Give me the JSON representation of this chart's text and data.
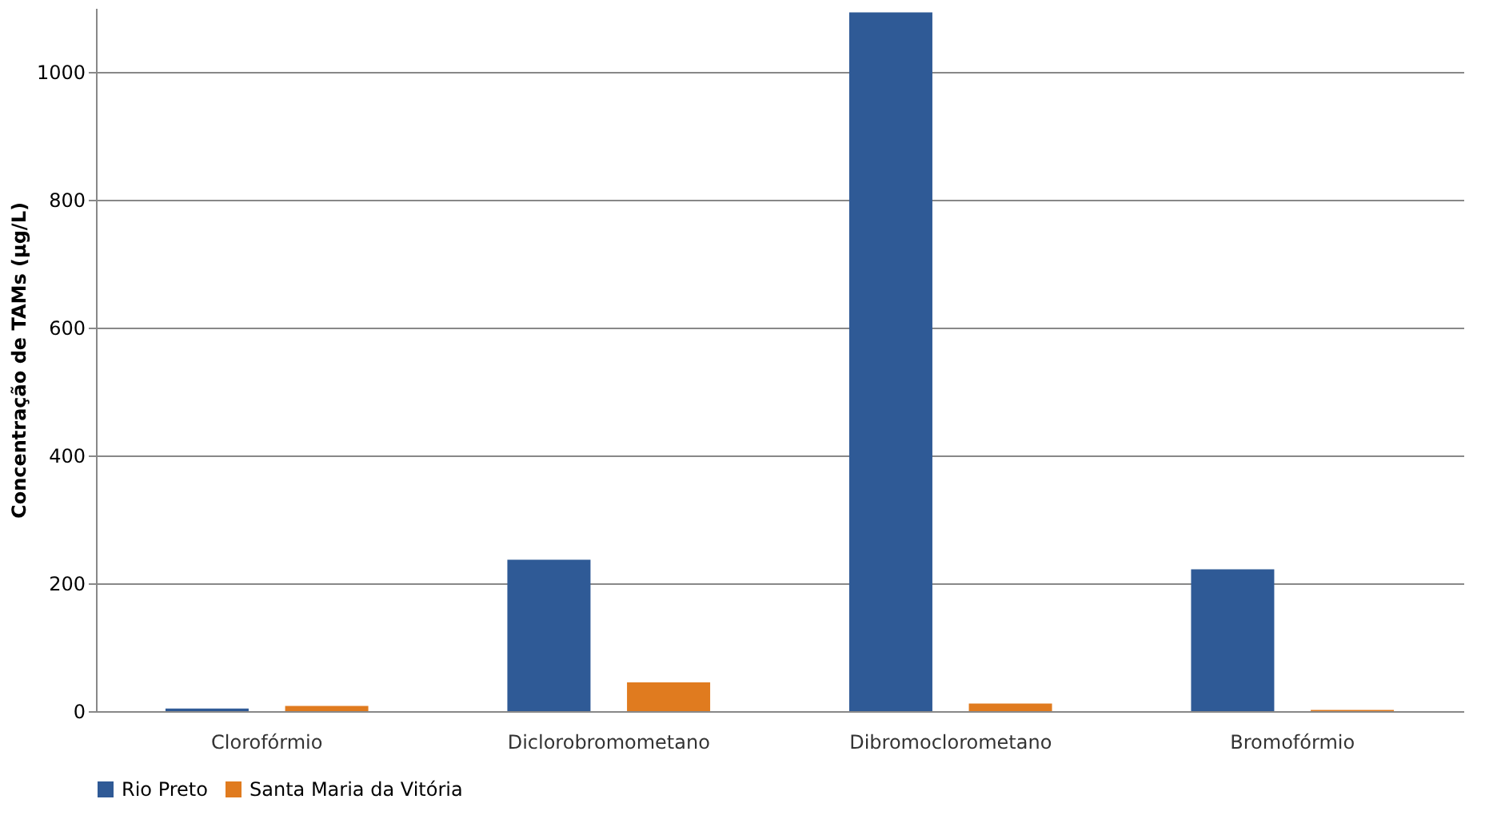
{
  "chart_data": {
    "type": "bar",
    "ylabel": "Concentração de TAMs  (µg/L)",
    "categories": [
      "Clorofórmio",
      "Diclorobromometano",
      "Dibromoclorometano",
      "Bromofórmio"
    ],
    "series": [
      {
        "name": "Rio Preto",
        "color": "#2f5a96",
        "values": [
          4,
          237,
          1093,
          222
        ]
      },
      {
        "name": "Santa Maria da Vitória",
        "color": "#e07b1f",
        "values": [
          8,
          45,
          12,
          2
        ]
      }
    ],
    "ylim": [
      0,
      1100
    ],
    "yticks": [
      0,
      200,
      400,
      600,
      800,
      1000
    ],
    "grid": "y",
    "legend": "bottom"
  }
}
